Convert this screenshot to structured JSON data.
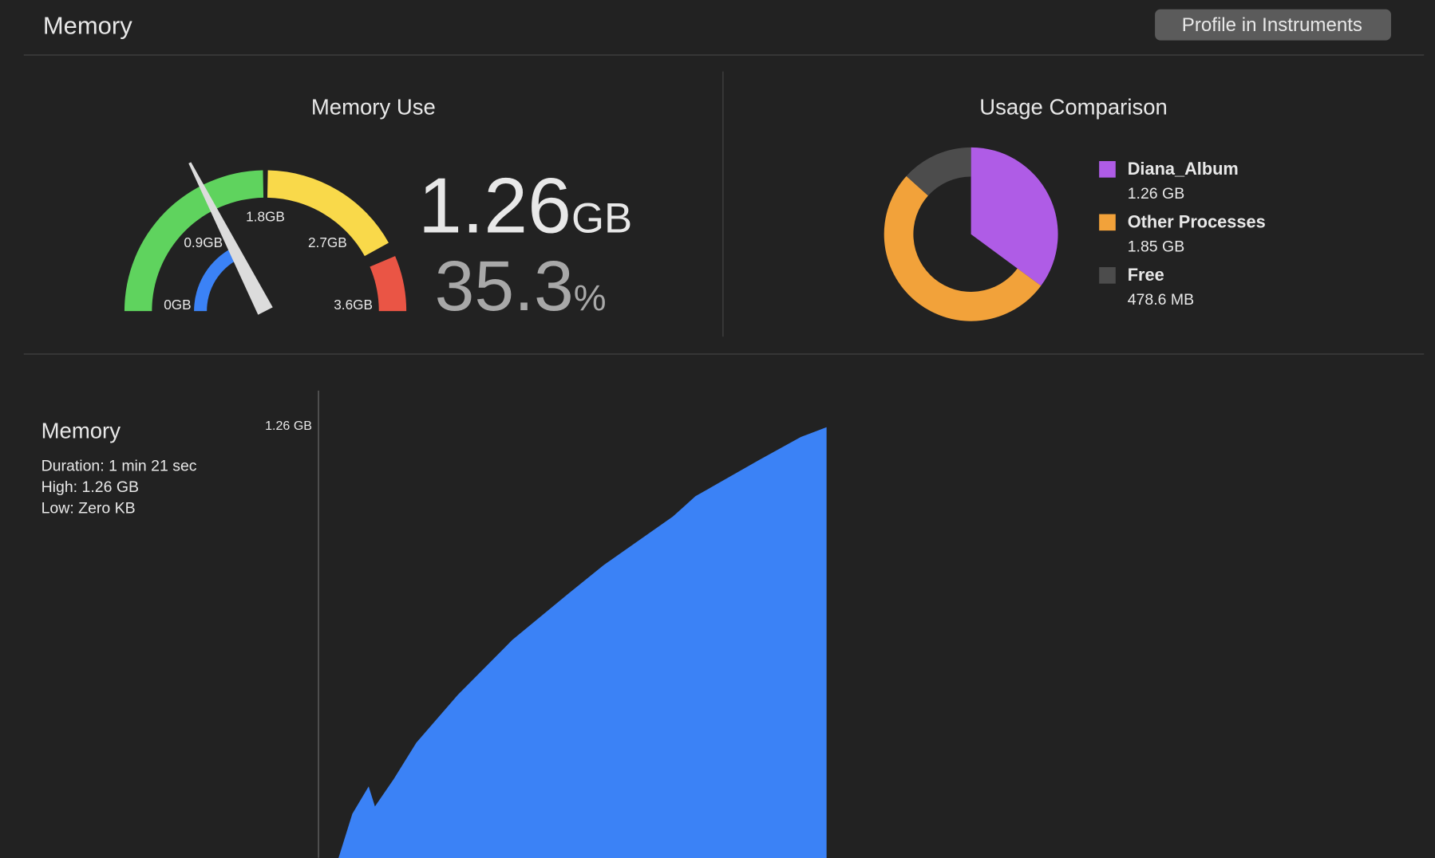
{
  "header": {
    "title": "Memory",
    "button": "Profile in Instruments"
  },
  "memory_use": {
    "title": "Memory Use",
    "gauge_ticks": [
      {
        "value": 0,
        "label": "0GB"
      },
      {
        "value": 0.9,
        "label": "0.9GB"
      },
      {
        "value": 1.8,
        "label": "1.8GB"
      },
      {
        "value": 2.7,
        "label": "2.7GB"
      },
      {
        "value": 3.6,
        "label": "3.6GB"
      }
    ],
    "value": 1.26,
    "unit": "GB",
    "percent": 35.3,
    "percent_unit": "%"
  },
  "usage_comparison": {
    "title": "Usage Comparison",
    "type": "pie",
    "series": [
      {
        "name": "Diana_Album",
        "value": 1.26,
        "value_label": "1.26 GB",
        "color": "#af5ce6"
      },
      {
        "name": "Other Processes",
        "value": 1.85,
        "value_label": "1.85 GB",
        "color": "#f2a23a"
      },
      {
        "name": "Free",
        "value": 0.4786,
        "value_label": "478.6 MB",
        "color": "#4c4c4c"
      }
    ]
  },
  "chart_data": {
    "type": "area",
    "title": "Memory",
    "info": [
      "Duration: 1 min 21 sec",
      "High: 1.26 GB",
      "Low: Zero KB"
    ],
    "x": [
      3.2,
      5.4,
      8.0,
      9.0,
      12.0,
      15.6,
      22.2,
      30.9,
      39.7,
      45.5,
      56.5,
      60.1,
      70.3,
      76.9,
      81.0
    ],
    "values": [
      0.031,
      0.157,
      0.235,
      0.178,
      0.256,
      0.36,
      0.496,
      0.653,
      0.783,
      0.867,
      1.005,
      1.063,
      1.167,
      1.232,
      1.26
    ],
    "color": "#3b82f6",
    "xlim": [
      0,
      178
    ],
    "ylim": [
      0,
      1.26
    ],
    "yticks": [
      {
        "value": 1.26,
        "label": "1.26 GB"
      }
    ]
  }
}
